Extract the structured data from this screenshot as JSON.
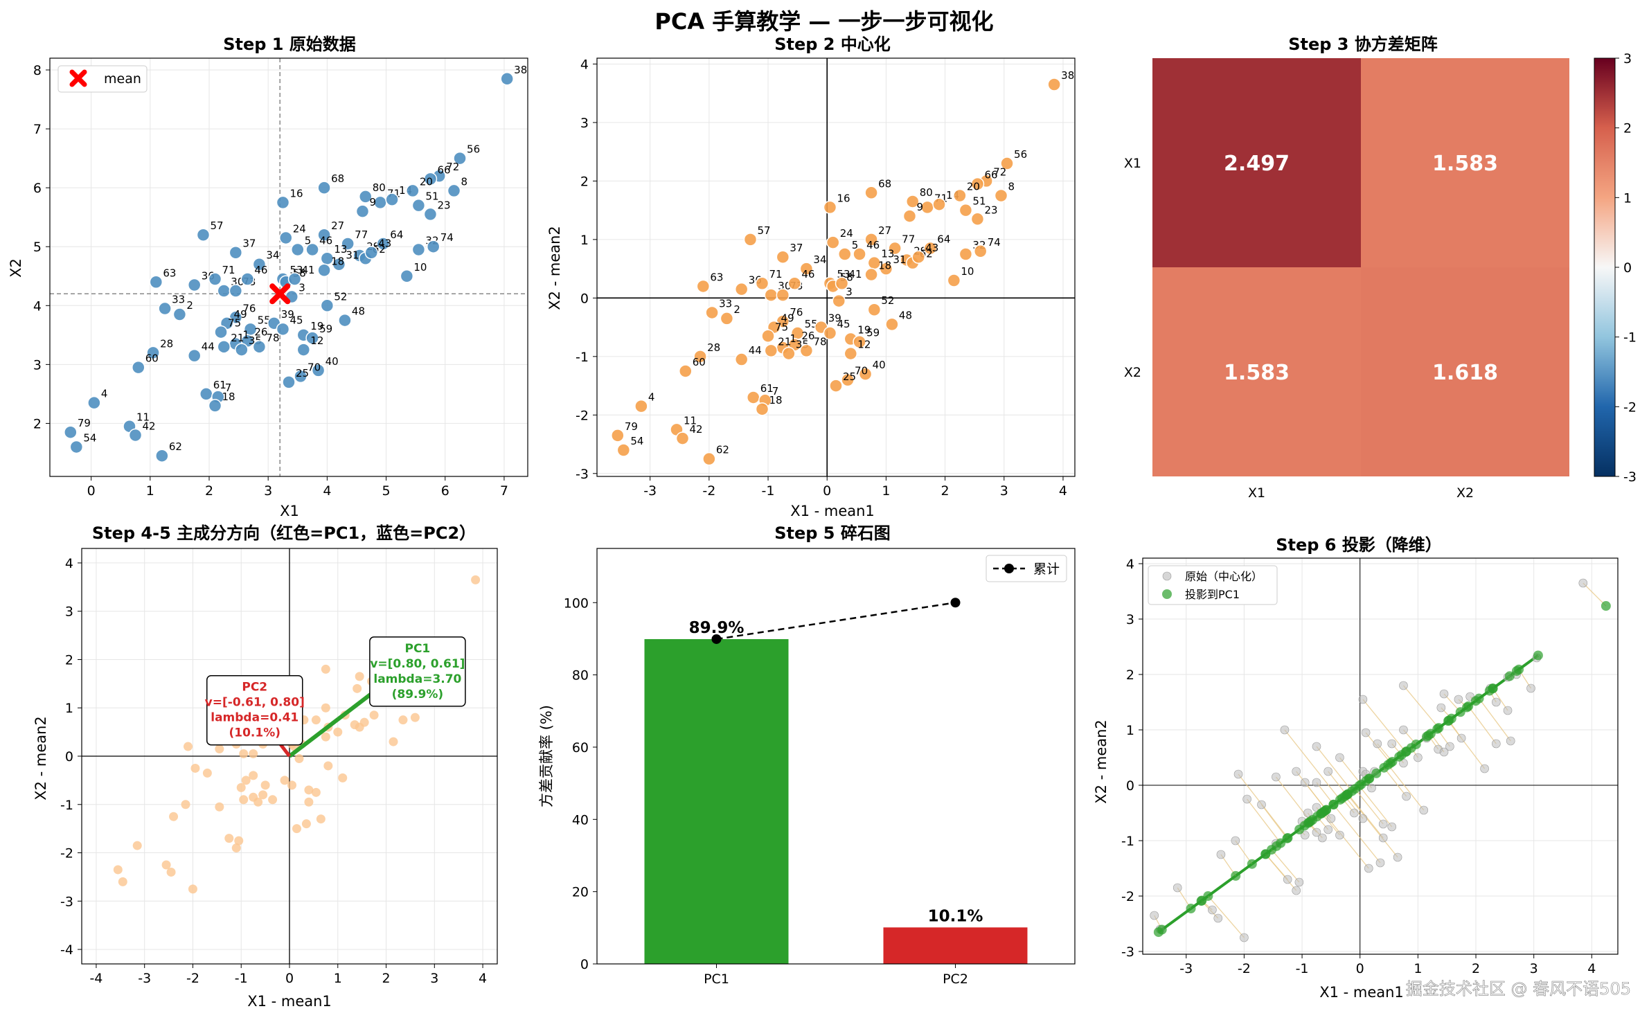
{
  "suptitle": "PCA 手算教学 — 一步一步可视化",
  "watermark": "掘金技术社区 @ 春风不语505",
  "colors": {
    "blue": "#4f8fc0",
    "orange": "#f5a04a",
    "light_orange": "#fbc590",
    "red": "#d62728",
    "green": "#2ca02c",
    "grey": "#bbbbbb",
    "mean": "#ff0000",
    "heat_high": "#a11a2b",
    "heat_mid": "#df7a5e"
  },
  "chart_data": [
    {
      "id": "step1",
      "type": "scatter",
      "title": "Step 1  原始数据",
      "xlabel": "X1",
      "ylabel": "X2",
      "xlim": [
        -0.7,
        7.4
      ],
      "ylim": [
        1.1,
        8.2
      ],
      "xticks": [
        0,
        1,
        2,
        3,
        4,
        5,
        6,
        7
      ],
      "yticks": [
        2,
        3,
        4,
        5,
        6,
        7,
        8
      ],
      "mean": [
        3.2,
        4.2
      ],
      "legend": [
        "mean"
      ],
      "legend_position": "upper-left",
      "grid": true,
      "points": [
        {
          "l": "38",
          "x": 7.05,
          "y": 7.85
        },
        {
          "l": "56",
          "x": 6.25,
          "y": 6.5
        },
        {
          "l": "72",
          "x": 5.9,
          "y": 6.2
        },
        {
          "l": "8",
          "x": 6.15,
          "y": 5.95
        },
        {
          "l": "66",
          "x": 5.75,
          "y": 6.15
        },
        {
          "l": "80",
          "x": 4.65,
          "y": 5.85
        },
        {
          "l": "71",
          "x": 4.9,
          "y": 5.75
        },
        {
          "l": "14",
          "x": 5.1,
          "y": 5.8
        },
        {
          "l": "20",
          "x": 5.45,
          "y": 5.95
        },
        {
          "l": "9",
          "x": 4.6,
          "y": 5.6
        },
        {
          "l": "51",
          "x": 5.55,
          "y": 5.7
        },
        {
          "l": "23",
          "x": 5.75,
          "y": 5.55
        },
        {
          "l": "68",
          "x": 3.95,
          "y": 6.0
        },
        {
          "l": "16",
          "x": 3.25,
          "y": 5.75
        },
        {
          "l": "57",
          "x": 1.9,
          "y": 5.2
        },
        {
          "l": "24",
          "x": 3.3,
          "y": 5.15
        },
        {
          "l": "27",
          "x": 3.95,
          "y": 5.2
        },
        {
          "l": "46",
          "x": 3.75,
          "y": 4.95
        },
        {
          "l": "77",
          "x": 4.35,
          "y": 5.05
        },
        {
          "l": "5",
          "x": 3.5,
          "y": 4.95
        },
        {
          "l": "29",
          "x": 4.55,
          "y": 4.85
        },
        {
          "l": "64",
          "x": 4.95,
          "y": 5.05
        },
        {
          "l": "62b",
          "x": 4.65,
          "y": 4.8
        },
        {
          "l": "43",
          "x": 4.75,
          "y": 4.9
        },
        {
          "l": "32",
          "x": 5.55,
          "y": 4.95
        },
        {
          "l": "74",
          "x": 5.8,
          "y": 5.0
        },
        {
          "l": "10",
          "x": 5.35,
          "y": 4.5
        },
        {
          "l": "13",
          "x": 4.0,
          "y": 4.8
        },
        {
          "l": "31",
          "x": 4.2,
          "y": 4.7
        },
        {
          "l": "18",
          "x": 3.95,
          "y": 4.6
        },
        {
          "l": "37",
          "x": 2.45,
          "y": 4.9
        },
        {
          "l": "34",
          "x": 2.85,
          "y": 4.7
        },
        {
          "l": "63",
          "x": 1.1,
          "y": 4.4
        },
        {
          "l": "36",
          "x": 1.75,
          "y": 4.35
        },
        {
          "l": "71b",
          "x": 2.1,
          "y": 4.45
        },
        {
          "l": "30",
          "x": 2.25,
          "y": 4.25
        },
        {
          "l": "73",
          "x": 2.45,
          "y": 4.25
        },
        {
          "l": "46b",
          "x": 2.65,
          "y": 4.45
        },
        {
          "l": "53",
          "x": 3.25,
          "y": 4.45
        },
        {
          "l": "58",
          "x": 3.3,
          "y": 4.4
        },
        {
          "l": "41",
          "x": 3.45,
          "y": 4.45
        },
        {
          "l": "3",
          "x": 3.4,
          "y": 4.15
        },
        {
          "l": "52",
          "x": 4.0,
          "y": 4.0
        },
        {
          "l": "2",
          "x": 1.5,
          "y": 3.85
        },
        {
          "l": "33",
          "x": 1.25,
          "y": 3.95
        },
        {
          "l": "76",
          "x": 2.45,
          "y": 3.8
        },
        {
          "l": "49",
          "x": 2.3,
          "y": 3.7
        },
        {
          "l": "55",
          "x": 2.7,
          "y": 3.6
        },
        {
          "l": "39",
          "x": 3.1,
          "y": 3.7
        },
        {
          "l": "45",
          "x": 3.25,
          "y": 3.6
        },
        {
          "l": "48",
          "x": 4.3,
          "y": 3.75
        },
        {
          "l": "75",
          "x": 2.2,
          "y": 3.55
        },
        {
          "l": "26",
          "x": 2.65,
          "y": 3.4
        },
        {
          "l": "1",
          "x": 2.45,
          "y": 3.35
        },
        {
          "l": "35",
          "x": 2.55,
          "y": 3.25
        },
        {
          "l": "78",
          "x": 2.85,
          "y": 3.3
        },
        {
          "l": "19",
          "x": 3.6,
          "y": 3.5
        },
        {
          "l": "59",
          "x": 3.75,
          "y": 3.45
        },
        {
          "l": "12",
          "x": 3.6,
          "y": 3.25
        },
        {
          "l": "21",
          "x": 2.25,
          "y": 3.3
        },
        {
          "l": "28",
          "x": 1.05,
          "y": 3.2
        },
        {
          "l": "60",
          "x": 0.8,
          "y": 2.95
        },
        {
          "l": "44",
          "x": 1.75,
          "y": 3.15
        },
        {
          "l": "40",
          "x": 3.85,
          "y": 2.9
        },
        {
          "l": "70",
          "x": 3.55,
          "y": 2.8
        },
        {
          "l": "25",
          "x": 3.35,
          "y": 2.7
        },
        {
          "l": "61",
          "x": 1.95,
          "y": 2.5
        },
        {
          "l": "7",
          "x": 2.15,
          "y": 2.45
        },
        {
          "l": "18b",
          "x": 2.1,
          "y": 2.3
        },
        {
          "l": "4",
          "x": 0.05,
          "y": 2.35
        },
        {
          "l": "11",
          "x": 0.65,
          "y": 1.95
        },
        {
          "l": "42",
          "x": 0.75,
          "y": 1.8
        },
        {
          "l": "79",
          "x": -0.35,
          "y": 1.85
        },
        {
          "l": "54",
          "x": -0.25,
          "y": 1.6
        },
        {
          "l": "62",
          "x": 1.2,
          "y": 1.45
        }
      ]
    },
    {
      "id": "step2",
      "type": "scatter",
      "title": "Step 2  中心化",
      "xlabel": "X1 - mean1",
      "ylabel": "X2 - mean2",
      "xlim": [
        -3.9,
        4.2
      ],
      "ylim": [
        -3.05,
        4.1
      ],
      "xticks": [
        -3,
        -2,
        -1,
        0,
        1,
        2,
        3,
        4
      ],
      "yticks": [
        -3,
        -2,
        -1,
        0,
        1,
        2,
        3,
        4
      ],
      "grid": true
    },
    {
      "id": "step3",
      "type": "heatmap",
      "title": "Step 3  协方差矩阵",
      "rows": [
        "X1",
        "X2"
      ],
      "cols": [
        "X1",
        "X2"
      ],
      "values": [
        [
          2.497,
          1.583
        ],
        [
          1.583,
          1.618
        ]
      ],
      "value_labels": [
        [
          "2.497",
          "1.583"
        ],
        [
          "1.583",
          "1.618"
        ]
      ],
      "colorbar_range": [
        -3,
        3
      ],
      "colorbar_ticks": [
        "3",
        "2",
        "1",
        "0",
        "-1",
        "-2",
        "-3"
      ]
    },
    {
      "id": "step45",
      "type": "scatter",
      "title": "Step 4-5  主成分方向（红色=PC1，蓝色=PC2）",
      "xlabel": "X1 - mean1",
      "ylabel": "X2 - mean2",
      "xlim": [
        -4.3,
        4.3
      ],
      "ylim": [
        -4.3,
        4.3
      ],
      "xticks": [
        -4,
        -3,
        -2,
        -1,
        0,
        1,
        2,
        3,
        4
      ],
      "yticks": [
        -4,
        -3,
        -2,
        -1,
        0,
        1,
        2,
        3,
        4
      ],
      "grid": true,
      "pc1": {
        "v": [
          0.8,
          0.61
        ],
        "lambda": 3.7,
        "pct": 89.9,
        "text": [
          "PC1",
          "v=[0.80, 0.61]",
          "lambda=3.70",
          "(89.9%)"
        ]
      },
      "pc2": {
        "v": [
          -0.61,
          0.8
        ],
        "lambda": 0.41,
        "pct": 10.1,
        "text": [
          "PC2",
          "v=[-0.61, 0.80]",
          "lambda=0.41",
          "(10.1%)"
        ]
      }
    },
    {
      "id": "step5",
      "type": "bar",
      "title": "Step 5  碎石图",
      "ylabel": "方差贡献率 (%)",
      "categories": [
        "PC1",
        "PC2"
      ],
      "values": [
        89.9,
        10.1
      ],
      "value_labels": [
        "89.9%",
        "10.1%"
      ],
      "cumulative": [
        89.9,
        100
      ],
      "legend": [
        "累计"
      ],
      "legend_position": "upper-right",
      "ylim": [
        0,
        115
      ],
      "yticks": [
        0,
        20,
        40,
        60,
        80,
        100
      ]
    },
    {
      "id": "step6",
      "type": "scatter",
      "title": "Step 6  投影（降维）",
      "xlabel": "X1 - mean1",
      "ylabel": "X2 - mean2",
      "xlim": [
        -3.75,
        4.45
      ],
      "ylim": [
        -3.05,
        4.1
      ],
      "xticks": [
        -3,
        -2,
        -1,
        0,
        1,
        2,
        3,
        4
      ],
      "yticks": [
        -3,
        -2,
        -1,
        0,
        1,
        2,
        3,
        4
      ],
      "grid": true,
      "legend": [
        "原始（中心化）",
        "投影到PC1"
      ],
      "legend_position": "upper-left"
    }
  ]
}
